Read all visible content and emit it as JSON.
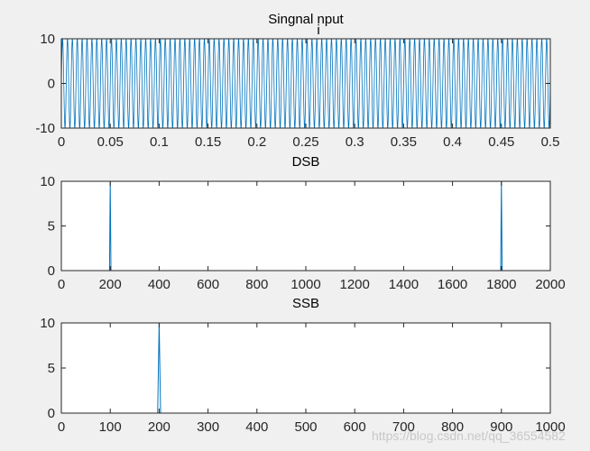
{
  "watermark": "https://blog.csdn.net/qq_36554582",
  "colors": {
    "figure_bg": "#f0f0f0",
    "axes_bg": "#ffffff",
    "axis": "#262626",
    "line": "#0072bd"
  },
  "chart_data": [
    {
      "type": "line",
      "title": "Singnal nput",
      "title_mark": "i",
      "xlabel": "",
      "ylabel": "",
      "xlim": [
        0,
        0.5
      ],
      "ylim": [
        -10,
        10
      ],
      "xticks": [
        0,
        0.05,
        0.1,
        0.15,
        0.2,
        0.25,
        0.3,
        0.35,
        0.4,
        0.45,
        0.5
      ],
      "xtick_labels": [
        "0",
        "0.05",
        "0.1",
        "0.15",
        "0.2",
        "0.25",
        "0.3",
        "0.35",
        "0.4",
        "0.45",
        "0.5"
      ],
      "yticks": [
        -10,
        0,
        10
      ],
      "ytick_labels": [
        "-10",
        "0",
        "10"
      ],
      "grid": false,
      "series": [
        {
          "signal": "sine",
          "amplitude": 10,
          "frequency_hz": 200
        }
      ]
    },
    {
      "type": "line",
      "title": "DSB",
      "xlabel": "",
      "ylabel": "",
      "xlim": [
        0,
        2000
      ],
      "ylim": [
        0,
        10
      ],
      "xticks": [
        0,
        200,
        400,
        600,
        800,
        1000,
        1200,
        1400,
        1600,
        1800,
        2000
      ],
      "xtick_labels": [
        "0",
        "200",
        "400",
        "600",
        "800",
        "1000",
        "1200",
        "1400",
        "1600",
        "1800",
        "2000"
      ],
      "yticks": [
        0,
        5,
        10
      ],
      "ytick_labels": [
        "0",
        "5",
        "10"
      ],
      "grid": false,
      "series": [
        {
          "x": [
            0,
            197,
            200,
            203,
            1797,
            1800,
            1803,
            2000
          ],
          "y": [
            0,
            0,
            10,
            0,
            0,
            10,
            0,
            0
          ]
        }
      ]
    },
    {
      "type": "line",
      "title": "SSB",
      "xlabel": "",
      "ylabel": "",
      "xlim": [
        0,
        1000
      ],
      "ylim": [
        0,
        10
      ],
      "xticks": [
        0,
        100,
        200,
        300,
        400,
        500,
        600,
        700,
        800,
        900,
        1000
      ],
      "xtick_labels": [
        "0",
        "100",
        "200",
        "300",
        "400",
        "500",
        "600",
        "700",
        "800",
        "900",
        "1000"
      ],
      "yticks": [
        0,
        5,
        10
      ],
      "ytick_labels": [
        "0",
        "5",
        "10"
      ],
      "grid": false,
      "series": [
        {
          "x": [
            0,
            197,
            200,
            203,
            1000
          ],
          "y": [
            0,
            0,
            10,
            0,
            0
          ]
        }
      ]
    }
  ]
}
